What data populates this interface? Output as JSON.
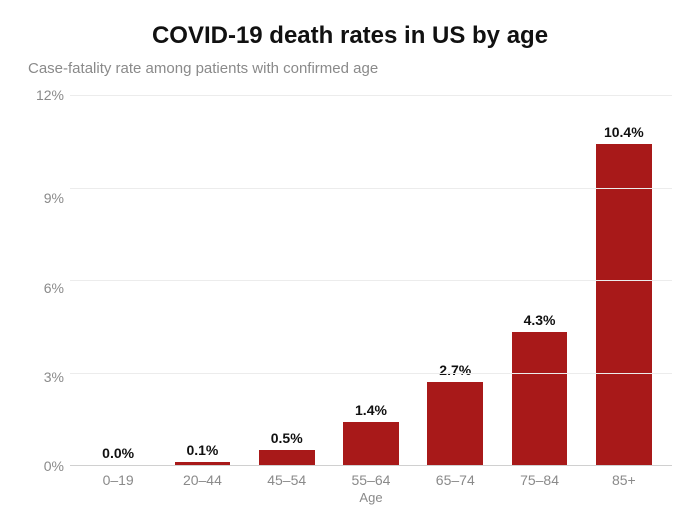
{
  "chart": {
    "type": "bar",
    "title": "COVID-19 death rates in US by age",
    "title_fontsize": 24,
    "subtitle": "Case-fatality rate among patients with confirmed age",
    "subtitle_fontsize": 15,
    "subtitle_color": "#8a8a8a",
    "background_color": "#ffffff",
    "categories": [
      "0–19",
      "20–44",
      "45–54",
      "55–64",
      "65–74",
      "75–84",
      "85+"
    ],
    "values": [
      0.0,
      0.1,
      0.5,
      1.4,
      2.7,
      4.3,
      10.4
    ],
    "value_labels": [
      "0.0%",
      "0.1%",
      "0.5%",
      "1.4%",
      "2.7%",
      "4.3%",
      "10.4%"
    ],
    "bar_color": "#a81919",
    "bar_width": 0.66,
    "value_label_fontsize": 14,
    "value_label_fontweight": 700,
    "value_label_color": "#111111",
    "x_axis": {
      "label": "Age",
      "tick_fontsize": 14,
      "tick_color": "#8a8a8a",
      "label_fontsize": 13,
      "label_color": "#8a8a8a"
    },
    "y_axis": {
      "ylim": [
        0,
        12
      ],
      "ticks": [
        12,
        9,
        6,
        3,
        0
      ],
      "tick_labels": [
        "12%",
        "9%",
        "6%",
        "3%",
        "0%"
      ],
      "tick_fontsize": 14,
      "tick_color": "#8a8a8a"
    },
    "grid": {
      "color": "#ececec",
      "axis_line_color": "#d0d0d0"
    }
  }
}
